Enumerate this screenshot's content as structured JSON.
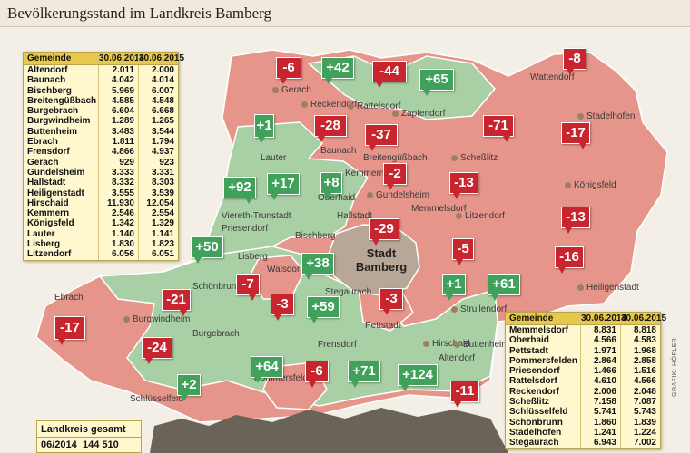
{
  "title": "Bevölkerungsstand im Landkreis Bamberg",
  "city_label": [
    "Stadt",
    "Bamberg"
  ],
  "colors": {
    "increase": "#3fa15a",
    "decrease": "#c8252e",
    "increase_area": "#a9cfa5",
    "decrease_area": "#e6958b",
    "city_area": "#b8a797",
    "table_bg": "#fff8cf",
    "table_head": "#e8c84a"
  },
  "table_left": {
    "headers": [
      "Gemeinde",
      "30.06.2014",
      "30.06.2015"
    ],
    "rows": [
      [
        "Altendorf",
        "2.011",
        "2.000"
      ],
      [
        "Baunach",
        "4.042",
        "4.014"
      ],
      [
        "Bischberg",
        "5.969",
        "6.007"
      ],
      [
        "Breitengüßbach",
        "4.585",
        "4.548"
      ],
      [
        "Burgebrach",
        "6.604",
        "6.668"
      ],
      [
        "Burgwindheim",
        "1.289",
        "1.265"
      ],
      [
        "Buttenheim",
        "3.483",
        "3.544"
      ],
      [
        "Ebrach",
        "1.811",
        "1.794"
      ],
      [
        "Frensdorf",
        "4.866",
        "4.937"
      ],
      [
        "Gerach",
        "929",
        "923"
      ],
      [
        "Gundelsheim",
        "3.333",
        "3.331"
      ],
      [
        "Hallstadt",
        "8.332",
        "8.303"
      ],
      [
        "Heiligenstadt",
        "3.555",
        "3.539"
      ],
      [
        "Hirschaid",
        "11.930",
        "12.054"
      ],
      [
        "Kemmern",
        "2.546",
        "2.554"
      ],
      [
        "Königsfeld",
        "1.342",
        "1.329"
      ],
      [
        "Lauter",
        "1.140",
        "1.141"
      ],
      [
        "Lisberg",
        "1.830",
        "1.823"
      ],
      [
        "Litzendorf",
        "6.056",
        "6.051"
      ]
    ]
  },
  "table_right": {
    "headers": [
      "Gemeinde",
      "30.06.2014",
      "30.06.2015"
    ],
    "rows": [
      [
        "Memmelsdorf",
        "8.831",
        "8.818"
      ],
      [
        "Oberhaid",
        "4.566",
        "4.583"
      ],
      [
        "Pettstadt",
        "1.971",
        "1.968"
      ],
      [
        "Pommersfelden",
        "2.864",
        "2.858"
      ],
      [
        "Priesendorf",
        "1.466",
        "1.516"
      ],
      [
        "Rattelsdorf",
        "4.610",
        "4.566"
      ],
      [
        "Reckendorf",
        "2.006",
        "2.048"
      ],
      [
        "Scheßlitz",
        "7.158",
        "7.087"
      ],
      [
        "Schlüsselfeld",
        "5.741",
        "5.743"
      ],
      [
        "Schönbrunn",
        "1.860",
        "1.839"
      ],
      [
        "Stadelhofen",
        "1.241",
        "1.224"
      ],
      [
        "Stegaurach",
        "6.943",
        "7.002"
      ]
    ]
  },
  "total": {
    "title": "Landkreis gesamt",
    "year": "06/2014",
    "value": "144 510"
  },
  "changes": [
    "-6",
    "+42",
    "-44",
    "+65",
    "-8",
    "+1",
    "-28",
    "-37",
    "-71",
    "-17",
    "-2",
    "-13",
    "-13",
    "+92",
    "+17",
    "+8",
    "-29",
    "-5",
    "+50",
    "-16",
    "+38",
    "+1",
    "+61",
    "-21",
    "-7",
    "-3",
    "+59",
    "-3",
    "-17",
    "-24",
    "+64",
    "-6",
    "+71",
    "+124",
    "-11",
    "+2"
  ],
  "places": [
    "Gerach",
    "Reckendorf",
    "Rattelsdorf",
    "Zapfendorf",
    "Wattendorf",
    "Stadelhofen",
    "Lauter",
    "Baunach",
    "Breitengüßbach",
    "Scheßlitz",
    "Kemmern",
    "Königsfeld",
    "Oberhaid",
    "Gundelsheim",
    "Memmelsdorf",
    "Viereth-Trunstadt",
    "Hallstadt",
    "Litzendorf",
    "Priesendorf",
    "Bischberg",
    "Lisberg",
    "Walsdorf",
    "Schönbrunn",
    "Heiligenstadt",
    "Strullendorf",
    "Stegaurach",
    "Ebrach",
    "Burgwindheim",
    "Pettstadt",
    "Burgebrach",
    "Frensdorf",
    "Hirschaid",
    "Buttenheim",
    "Altendorf",
    "Pommersfelden",
    "Schlüsselfeld"
  ],
  "credit": "GRAFIK: HÖFLER"
}
